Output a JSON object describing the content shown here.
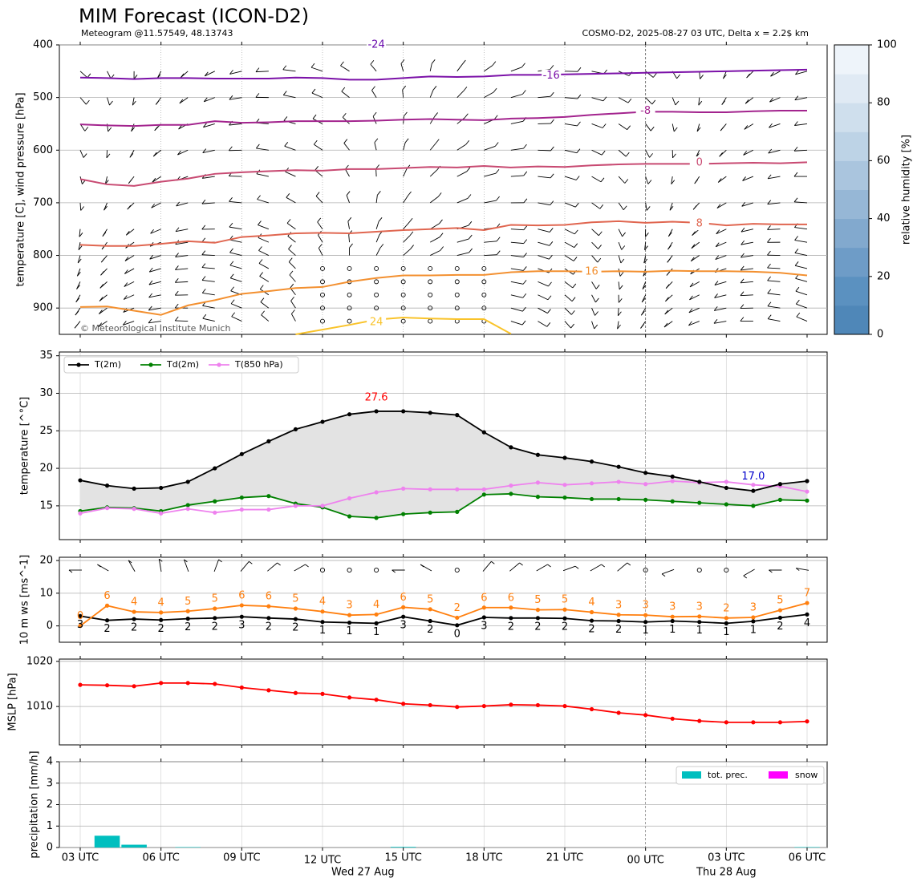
{
  "header": {
    "title": "MIM Forecast (ICON-D2)",
    "subtitle_left": "Meteogram @11.57549, 48.13743",
    "subtitle_right": "COSMO-D2, 2025-08-27 03 UTC, Delta x = 2.2$ km",
    "copyright": "© Meteorological Institute Munich"
  },
  "x_axis": {
    "tick_labels": [
      "03 UTC",
      "06 UTC",
      "09 UTC",
      "12 UTC",
      "15 UTC",
      "18 UTC",
      "21 UTC",
      "00 UTC",
      "03 UTC",
      "06 UTC"
    ],
    "day_labels": [
      "Wed 27 Aug",
      "Thu 28 Aug"
    ]
  },
  "colors": {
    "t2m": "#000000",
    "td2m": "#008000",
    "t850": "#ee82ee",
    "gust": "#ff7f0e",
    "mslp": "#ff0000",
    "tot_prec": "#00bfbf",
    "snow": "#ff00ff",
    "max_label": "#ff0000",
    "min_label": "#0000cc"
  },
  "chart_data": [
    {
      "type": "heatmap",
      "name": "sounding",
      "ylabel": "temperature [C], wind pressure [hPa]",
      "yticks": [
        "400",
        "500",
        "600",
        "700",
        "800",
        "900"
      ],
      "ylim": [
        950,
        400
      ],
      "hours": [
        0,
        1,
        2,
        3,
        4,
        5,
        6,
        7,
        8,
        9,
        10,
        11,
        12,
        13,
        14,
        15,
        16,
        17,
        18,
        19,
        20,
        21,
        22,
        23,
        24,
        25,
        26,
        27
      ],
      "levels": [
        450,
        500,
        550,
        600,
        650,
        700,
        750,
        775,
        800,
        825,
        850,
        875,
        900,
        925
      ],
      "isotherms": [
        {
          "label": "-24",
          "color": "#6a0dad",
          "p": [
            null
          ]
        },
        {
          "label": "-16",
          "color": "#7b11a8",
          "p": [
            462,
            463,
            465,
            463,
            463,
            464,
            464,
            464,
            462,
            463,
            466,
            466,
            463,
            460,
            461,
            460,
            457,
            457,
            456,
            455,
            454,
            453,
            452,
            451,
            450,
            449,
            448,
            447
          ]
        },
        {
          "label": "-8",
          "color": "#a3248e",
          "p": [
            551,
            553,
            554,
            552,
            552,
            545,
            548,
            547,
            545,
            545,
            545,
            544,
            542,
            541,
            542,
            543,
            540,
            539,
            537,
            533,
            530,
            527,
            527,
            528,
            528,
            526,
            525,
            525
          ]
        },
        {
          "label": "0",
          "color": "#c84a72",
          "p": [
            655,
            665,
            668,
            660,
            654,
            645,
            642,
            640,
            638,
            639,
            636,
            636,
            634,
            632,
            633,
            630,
            633,
            631,
            632,
            629,
            627,
            626,
            626,
            626,
            625,
            624,
            625,
            623
          ]
        },
        {
          "label": "8",
          "color": "#e06650",
          "p": [
            780,
            782,
            782,
            778,
            773,
            776,
            765,
            762,
            758,
            757,
            758,
            755,
            752,
            750,
            748,
            752,
            742,
            743,
            742,
            737,
            735,
            738,
            736,
            738,
            743,
            740,
            741,
            741
          ]
        },
        {
          "label": "16",
          "color": "#f39030",
          "p": [
            898,
            897,
            905,
            913,
            895,
            885,
            873,
            868,
            862,
            860,
            850,
            843,
            838,
            838,
            837,
            837,
            832,
            830,
            830,
            831,
            830,
            831,
            829,
            830,
            830,
            831,
            833,
            838
          ]
        },
        {
          "label": "24",
          "color": "#f9c32a",
          "p": [
            null,
            null,
            null,
            null,
            null,
            null,
            null,
            null,
            950,
            941,
            932,
            922,
            918,
            920,
            921,
            921,
            949
          ]
        }
      ],
      "inline_labels": [
        "-24",
        "-16",
        "-8",
        "0",
        "8",
        "16",
        "24"
      ],
      "colorbar": {
        "label": "relative humidity [%]",
        "ticks": [
          "0",
          "20",
          "40",
          "60",
          "80",
          "100"
        ],
        "range": [
          0,
          100
        ],
        "colors": [
          "#4f87b8",
          "#5b91c0",
          "#6e9cc7",
          "#82a9ce",
          "#96b7d6",
          "#aac5de",
          "#bdd3e6",
          "#cfdfed",
          "#e0eaf4",
          "#eef4fa"
        ]
      }
    },
    {
      "type": "line",
      "name": "temperature",
      "ylabel": "temperature [$^\\circ$C]",
      "yticks": [
        "15",
        "20",
        "25",
        "30",
        "35"
      ],
      "ylim": [
        10.5,
        35.5
      ],
      "hours": [
        0,
        1,
        2,
        3,
        4,
        5,
        6,
        7,
        8,
        9,
        10,
        11,
        12,
        13,
        14,
        15,
        16,
        17,
        18,
        19,
        20,
        21,
        22,
        23,
        24,
        25,
        26,
        27
      ],
      "series": [
        {
          "name": "T(2m)",
          "values": [
            18.4,
            17.7,
            17.3,
            17.4,
            18.2,
            20.0,
            21.9,
            23.6,
            25.2,
            26.2,
            27.2,
            27.6,
            27.6,
            27.4,
            27.1,
            24.8,
            22.8,
            21.8,
            21.4,
            20.9,
            20.2,
            19.4,
            18.9,
            18.2,
            17.4,
            17.0,
            17.9,
            18.3
          ]
        },
        {
          "name": "Td(2m)",
          "values": [
            14.3,
            14.8,
            14.7,
            14.3,
            15.1,
            15.6,
            16.1,
            16.3,
            15.3,
            14.8,
            13.6,
            13.4,
            13.9,
            14.1,
            14.2,
            16.5,
            16.6,
            16.2,
            16.1,
            15.9,
            15.9,
            15.8,
            15.6,
            15.4,
            15.2,
            15.0,
            15.8,
            15.7
          ]
        },
        {
          "name": "T(850 hPa)",
          "values": [
            14.0,
            14.7,
            14.6,
            14.0,
            14.6,
            14.1,
            14.5,
            14.5,
            15.0,
            15.0,
            16.0,
            16.8,
            17.3,
            17.2,
            17.2,
            17.2,
            17.7,
            18.1,
            17.8,
            18.0,
            18.2,
            17.9,
            18.3,
            18.1,
            18.2,
            17.8,
            17.6,
            16.9
          ]
        }
      ],
      "annotations": [
        {
          "text": "27.6",
          "x": 11,
          "y": 29.4,
          "color": "#ff0000"
        },
        {
          "text": "17.0",
          "x": 25,
          "y": 18.9,
          "color": "#0000cc"
        }
      ]
    },
    {
      "type": "line",
      "name": "wind",
      "ylabel": "10 m ws [ms$^{-1}$]",
      "yticks": [
        "0",
        "10",
        "20"
      ],
      "ylim": [
        -5,
        21
      ],
      "hours": [
        0,
        1,
        2,
        3,
        4,
        5,
        6,
        7,
        8,
        9,
        10,
        11,
        12,
        13,
        14,
        15,
        16,
        17,
        18,
        19,
        20,
        21,
        22,
        23,
        24,
        25,
        26,
        27
      ],
      "series": [
        {
          "name": "ws",
          "values": [
            3.0,
            1.7,
            2.1,
            1.8,
            2.2,
            2.4,
            2.8,
            2.4,
            2.1,
            1.2,
            1.0,
            0.8,
            2.8,
            1.5,
            0.2,
            2.6,
            2.4,
            2.4,
            2.3,
            1.6,
            1.5,
            1.2,
            1.5,
            1.2,
            0.8,
            1.4,
            2.5,
            3.5
          ]
        },
        {
          "name": "gust",
          "values": [
            0.0,
            6.2,
            4.3,
            4.1,
            4.5,
            5.3,
            6.3,
            6.0,
            5.3,
            4.4,
            3.3,
            3.5,
            5.7,
            5.1,
            2.5,
            5.6,
            5.6,
            4.9,
            5.0,
            4.2,
            3.4,
            3.3,
            2.8,
            2.9,
            2.4,
            2.6,
            4.8,
            7.0
          ]
        }
      ],
      "ws_labels": [
        "3",
        "2",
        "2",
        "2",
        "2",
        "2",
        "3",
        "2",
        "2",
        "1",
        "1",
        "1",
        "3",
        "2",
        "0",
        "3",
        "2",
        "2",
        "2",
        "2",
        "2",
        "1",
        "1",
        "1",
        "1",
        "1",
        "2",
        "4"
      ],
      "gust_labels": [
        "0",
        "6",
        "4",
        "4",
        "5",
        "5",
        "6",
        "6",
        "5",
        "4",
        "3",
        "4",
        "6",
        "5",
        "2",
        "6",
        "6",
        "5",
        "5",
        "4",
        "3",
        "3",
        "3",
        "3",
        "2",
        "3",
        "5",
        "7"
      ],
      "barb_dirs": [
        270,
        300,
        330,
        350,
        340,
        20,
        40,
        50,
        60,
        null,
        null,
        null,
        270,
        300,
        null,
        40,
        50,
        60,
        70,
        60,
        50,
        null,
        250,
        null,
        null,
        240,
        270,
        280
      ]
    },
    {
      "type": "line",
      "name": "mslp",
      "ylabel": "MSLP [hPa]",
      "yticks": [
        "1010",
        "1020"
      ],
      "ylim": [
        1001.5,
        1020.5
      ],
      "hours": [
        0,
        1,
        2,
        3,
        4,
        5,
        6,
        7,
        8,
        9,
        10,
        11,
        12,
        13,
        14,
        15,
        16,
        17,
        18,
        19,
        20,
        21,
        22,
        23,
        24,
        25,
        26,
        27
      ],
      "series": [
        {
          "name": "MSLP",
          "values": [
            1014.8,
            1014.7,
            1014.5,
            1015.2,
            1015.2,
            1015.0,
            1014.2,
            1013.6,
            1013.0,
            1012.8,
            1012.0,
            1011.5,
            1010.6,
            1010.3,
            1009.9,
            1010.1,
            1010.4,
            1010.3,
            1010.1,
            1009.4,
            1008.6,
            1008.1,
            1007.3,
            1006.8,
            1006.5,
            1006.5,
            1006.5,
            1006.7
          ]
        }
      ]
    },
    {
      "type": "bar",
      "name": "precipitation",
      "ylabel": "precipitation [mm/h]",
      "yticks": [
        "0",
        "1",
        "2",
        "3",
        "4"
      ],
      "ylim": [
        0,
        4
      ],
      "hours": [
        0,
        1,
        2,
        3,
        4,
        5,
        6,
        7,
        8,
        9,
        10,
        11,
        12,
        13,
        14,
        15,
        16,
        17,
        18,
        19,
        20,
        21,
        22,
        23,
        24,
        25,
        26,
        27
      ],
      "series": [
        {
          "name": "tot. prec.",
          "values": [
            0,
            0.55,
            0.13,
            0,
            0.02,
            0,
            0,
            0,
            0,
            0,
            0,
            0,
            0.03,
            0,
            0,
            0,
            0,
            0,
            0,
            0,
            0,
            0,
            0,
            0,
            0,
            0,
            0,
            0.02
          ]
        },
        {
          "name": "snow",
          "values": [
            0,
            0,
            0,
            0,
            0,
            0,
            0,
            0,
            0,
            0,
            0,
            0,
            0,
            0,
            0,
            0,
            0,
            0,
            0,
            0,
            0,
            0,
            0,
            0,
            0,
            0,
            0,
            0
          ]
        }
      ]
    }
  ]
}
